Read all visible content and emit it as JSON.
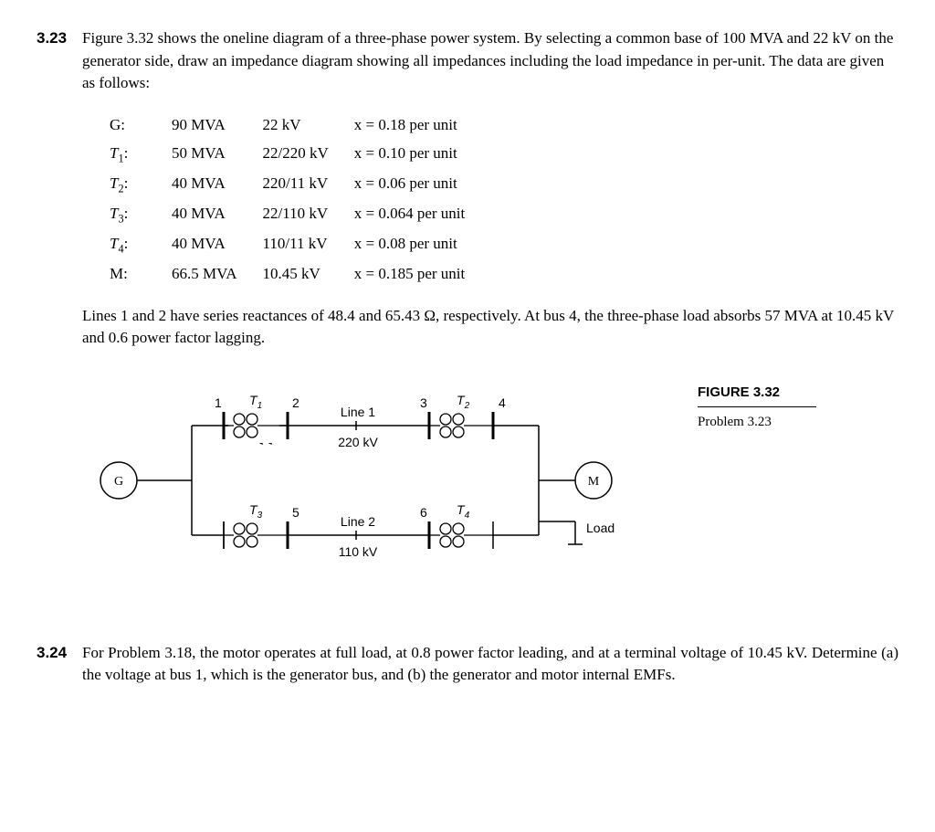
{
  "p323": {
    "num": "3.23",
    "text1": "Figure 3.32 shows the oneline diagram of a three-phase power system. By selecting a common base of 100 MVA and 22 kV on the generator side, draw an impedance diagram showing all impedances including the load impedance in per-unit. The data are given as follows:",
    "rows": [
      {
        "label": "G:",
        "mva": "90 MVA",
        "kv": "22 kV",
        "x": "x = 0.18 per unit",
        "italic": false
      },
      {
        "label": "T",
        "sub": "1",
        "suffix": ":",
        "mva": "50 MVA",
        "kv": "22/220 kV",
        "x": "x = 0.10 per unit",
        "italic": true
      },
      {
        "label": "T",
        "sub": "2",
        "suffix": ":",
        "mva": "40 MVA",
        "kv": "220/11 kV",
        "x": "x = 0.06 per unit",
        "italic": true
      },
      {
        "label": "T",
        "sub": "3",
        "suffix": ":",
        "mva": "40 MVA",
        "kv": "22/110 kV",
        "x": "x = 0.064 per unit",
        "italic": true
      },
      {
        "label": "T",
        "sub": "4",
        "suffix": ":",
        "mva": "40 MVA",
        "kv": "110/11 kV",
        "x": "x = 0.08 per unit",
        "italic": true
      },
      {
        "label": "M:",
        "mva": "66.5 MVA",
        "kv": "10.45 kV",
        "x": "x = 0.185 per unit",
        "italic": false
      }
    ],
    "text2": "Lines 1 and 2 have series reactances of 48.4 and 65.43 Ω, respectively. At bus 4, the three-phase load absorbs 57 MVA at 10.45 kV and 0.6 power factor lagging."
  },
  "fig": {
    "title": "FIGURE 3.32",
    "caption": "Problem 3.23",
    "buses": {
      "b1": "1",
      "b2": "2",
      "b3": "3",
      "b4": "4",
      "b5": "5",
      "b6": "6"
    },
    "xfmr": {
      "t1": "T",
      "t1s": "1",
      "t2": "T",
      "t2s": "2",
      "t3": "T",
      "t3s": "3",
      "t4": "T",
      "t4s": "4"
    },
    "line1": "Line 1",
    "line1v": "220 kV",
    "line2": "Line 2",
    "line2v": "110 kV",
    "G": "G",
    "M": "M",
    "Load": "Load"
  },
  "p324": {
    "num": "3.24",
    "text": "For Problem 3.18, the motor operates at full load, at 0.8 power factor leading, and at a terminal voltage of 10.45 kV. Determine (a) the voltage at bus 1, which is the generator bus, and (b) the generator and motor internal EMFs."
  }
}
